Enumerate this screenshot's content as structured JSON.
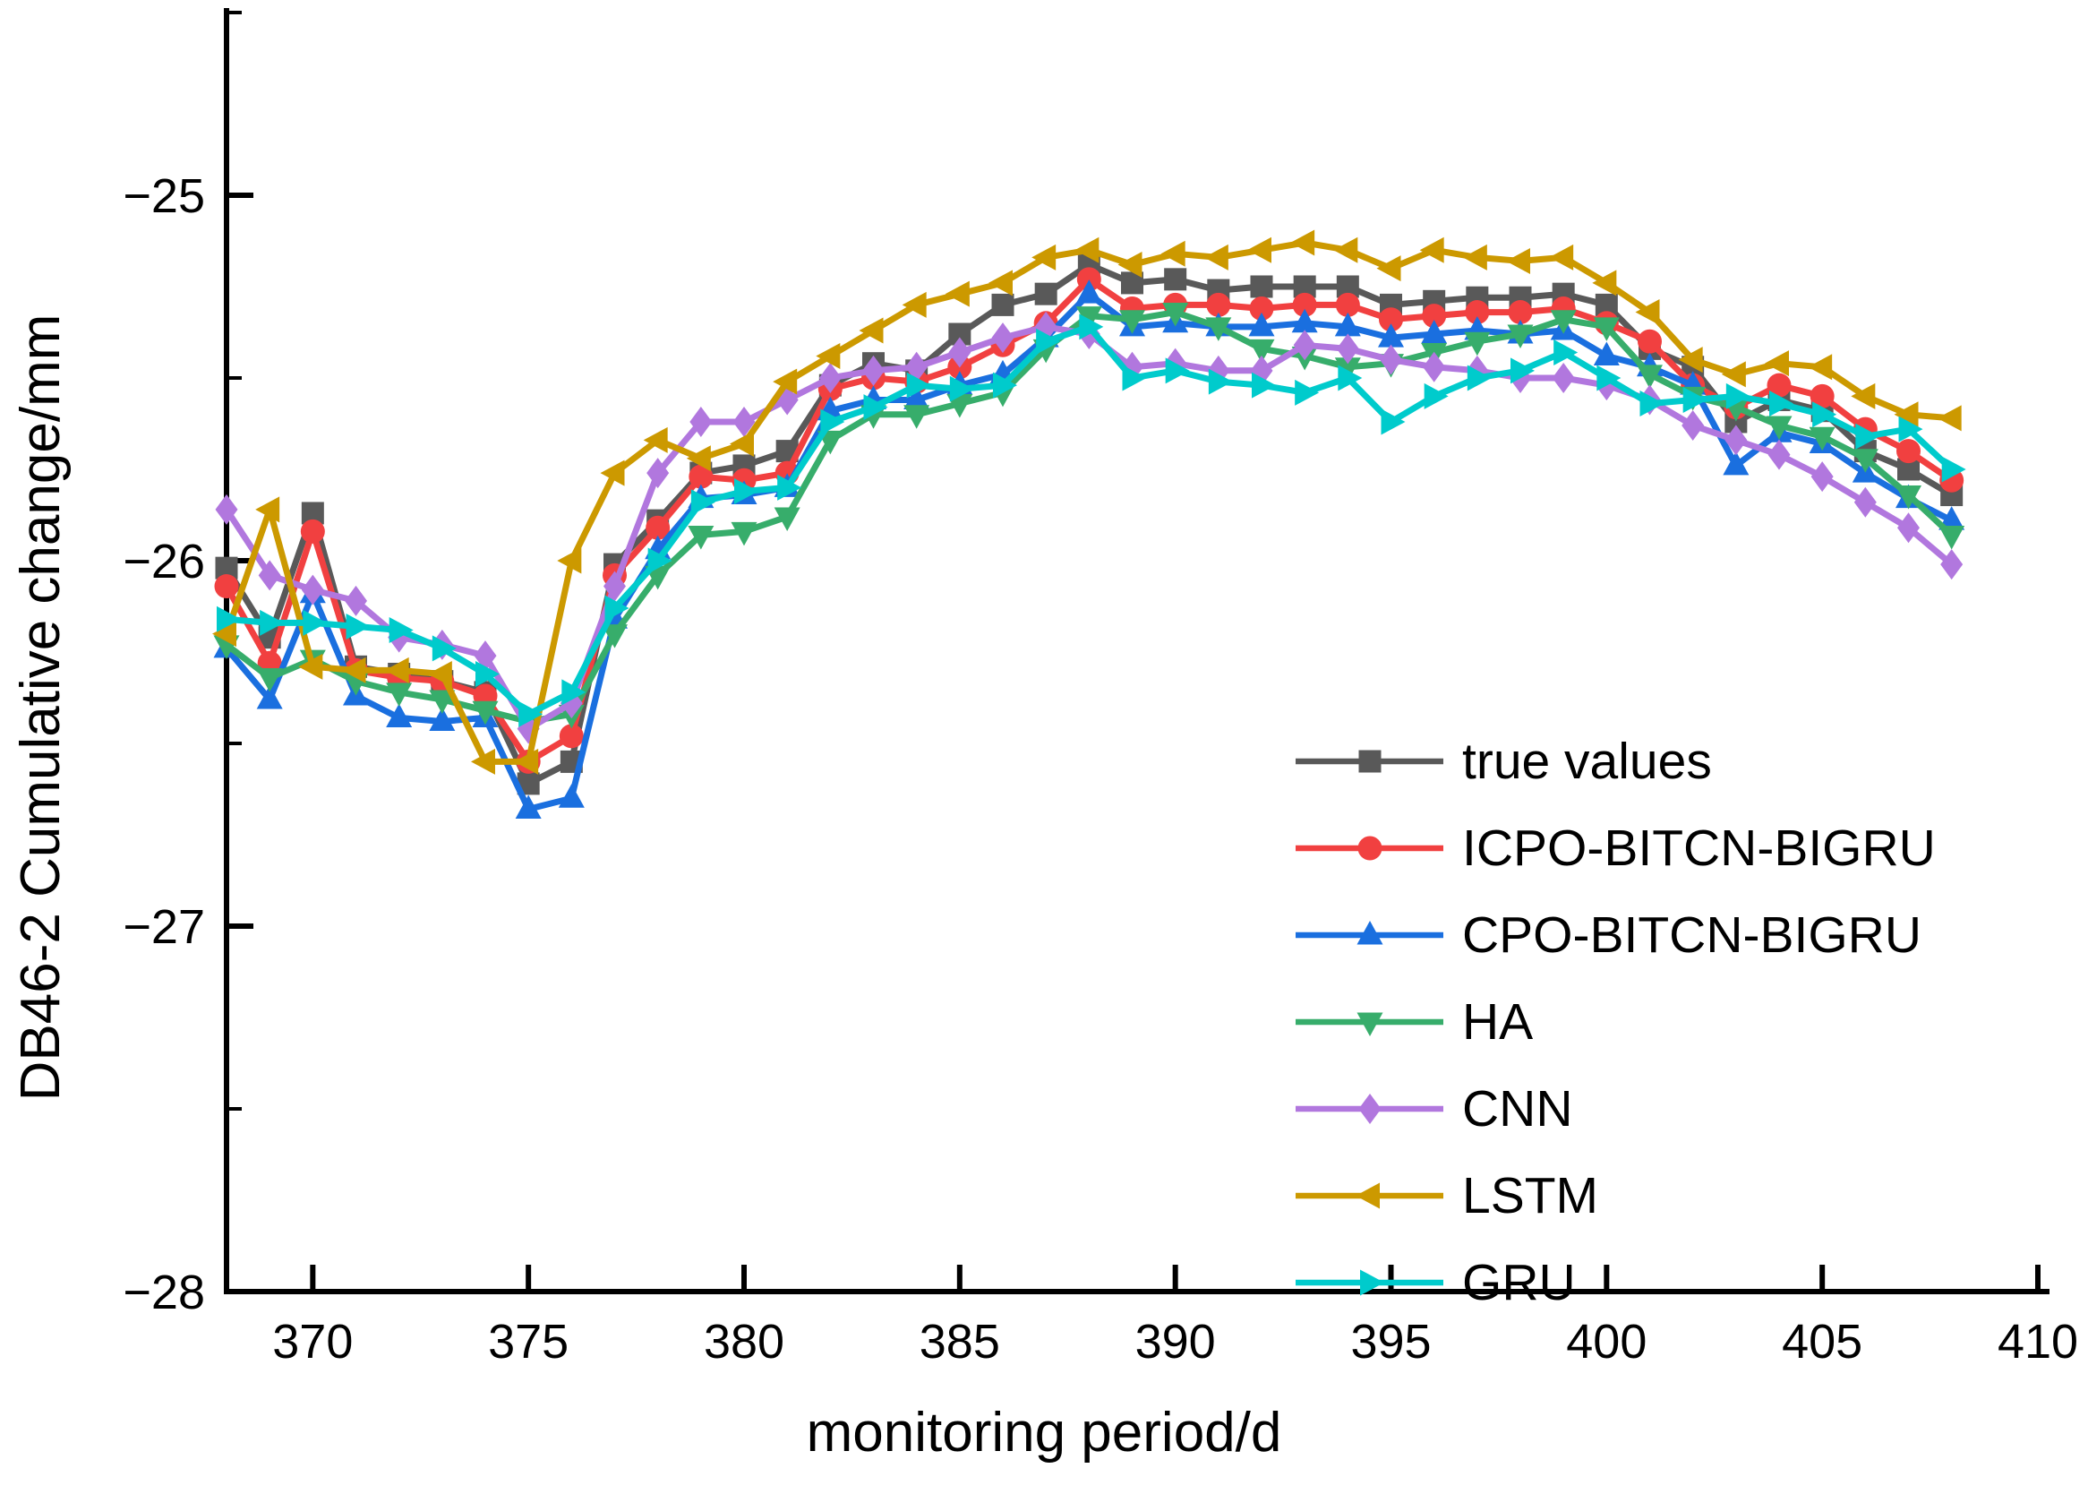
{
  "page": {
    "background": "#ffffff"
  },
  "chart_data": {
    "type": "line",
    "title": "",
    "xlabel": "monitoring period/d",
    "ylabel": "DB46-2 Cumulative change/mm",
    "xlim": [
      368,
      410
    ],
    "ylim": [
      -28,
      -24.5
    ],
    "grid": false,
    "legend_position": "inside-right",
    "xticks": [
      370,
      375,
      380,
      385,
      390,
      395,
      400,
      405,
      410
    ],
    "xtick_labels": [
      "370",
      "375",
      "380",
      "385",
      "390",
      "395",
      "400",
      "405",
      "410"
    ],
    "yticks_major": [
      -25,
      -26,
      -27,
      -28
    ],
    "ytick_labels": [
      "−25",
      "−26",
      "−27",
      "−28"
    ],
    "yticks_minor": [
      -24.5,
      -25.5,
      -26.5,
      -27.5
    ],
    "x": [
      368,
      369,
      370,
      371,
      372,
      373,
      374,
      375,
      376,
      377,
      378,
      379,
      380,
      381,
      382,
      383,
      384,
      385,
      386,
      387,
      388,
      389,
      390,
      391,
      392,
      393,
      394,
      395,
      396,
      397,
      398,
      399,
      400,
      401,
      402,
      403,
      404,
      405,
      406,
      407,
      408
    ],
    "series": [
      {
        "name": "true values",
        "color": "#595959",
        "marker": "square",
        "values": [
          -26.02,
          -26.21,
          -25.87,
          -26.29,
          -26.31,
          -26.33,
          -26.36,
          -26.61,
          -26.55,
          -26.01,
          -25.89,
          -25.76,
          -25.74,
          -25.7,
          -25.52,
          -25.46,
          -25.48,
          -25.38,
          -25.3,
          -25.27,
          -25.19,
          -25.24,
          -25.23,
          -25.26,
          -25.25,
          -25.25,
          -25.25,
          -25.3,
          -25.29,
          -25.28,
          -25.28,
          -25.27,
          -25.3,
          -25.42,
          -25.47,
          -25.62,
          -25.56,
          -25.59,
          -25.7,
          -25.75,
          -25.82
        ]
      },
      {
        "name": "ICPO-BITCN-BIGRU",
        "color": "#F14040",
        "marker": "circle",
        "values": [
          -26.07,
          -26.28,
          -25.92,
          -26.3,
          -26.32,
          -26.33,
          -26.37,
          -26.55,
          -26.48,
          -26.04,
          -25.91,
          -25.77,
          -25.78,
          -25.76,
          -25.53,
          -25.5,
          -25.51,
          -25.47,
          -25.41,
          -25.35,
          -25.23,
          -25.31,
          -25.3,
          -25.3,
          -25.31,
          -25.3,
          -25.3,
          -25.34,
          -25.33,
          -25.32,
          -25.32,
          -25.31,
          -25.35,
          -25.4,
          -25.52,
          -25.58,
          -25.52,
          -25.55,
          -25.64,
          -25.7,
          -25.78
        ]
      },
      {
        "name": "CPO-BITCN-BIGRU",
        "color": "#1A6FDF",
        "marker": "triangle-up",
        "values": [
          -26.24,
          -26.38,
          -26.09,
          -26.37,
          -26.43,
          -26.44,
          -26.43,
          -26.68,
          -26.65,
          -26.16,
          -25.97,
          -25.83,
          -25.82,
          -25.8,
          -25.59,
          -25.56,
          -25.56,
          -25.52,
          -25.49,
          -25.39,
          -25.27,
          -25.36,
          -25.35,
          -25.36,
          -25.36,
          -25.35,
          -25.36,
          -25.39,
          -25.38,
          -25.37,
          -25.38,
          -25.37,
          -25.44,
          -25.47,
          -25.52,
          -25.74,
          -25.65,
          -25.68,
          -25.76,
          -25.83,
          -25.89
        ]
      },
      {
        "name": "HA",
        "color": "#37AD6B",
        "marker": "triangle-down",
        "values": [
          -26.23,
          -26.32,
          -26.27,
          -26.33,
          -26.36,
          -26.38,
          -26.41,
          -26.44,
          -26.42,
          -26.2,
          -26.04,
          -25.93,
          -25.92,
          -25.88,
          -25.67,
          -25.6,
          -25.6,
          -25.57,
          -25.54,
          -25.42,
          -25.33,
          -25.34,
          -25.32,
          -25.36,
          -25.42,
          -25.44,
          -25.47,
          -25.46,
          -25.43,
          -25.4,
          -25.38,
          -25.34,
          -25.36,
          -25.49,
          -25.55,
          -25.58,
          -25.63,
          -25.66,
          -25.72,
          -25.82,
          -25.93
        ]
      },
      {
        "name": "CNN",
        "color": "#B177DE",
        "marker": "diamond",
        "values": [
          -25.86,
          -26.04,
          -26.08,
          -26.11,
          -26.21,
          -26.23,
          -26.26,
          -26.46,
          -26.39,
          -26.07,
          -25.76,
          -25.62,
          -25.62,
          -25.56,
          -25.5,
          -25.48,
          -25.47,
          -25.43,
          -25.39,
          -25.36,
          -25.38,
          -25.47,
          -25.46,
          -25.48,
          -25.48,
          -25.41,
          -25.42,
          -25.45,
          -25.47,
          -25.48,
          -25.5,
          -25.5,
          -25.52,
          -25.56,
          -25.63,
          -25.67,
          -25.71,
          -25.77,
          -25.84,
          -25.91,
          -26.01
        ]
      },
      {
        "name": "LSTM",
        "color": "#CC9900",
        "marker": "triangle-left",
        "values": [
          -26.2,
          -25.86,
          -26.29,
          -26.3,
          -26.3,
          -26.31,
          -26.55,
          -26.55,
          -26.0,
          -25.76,
          -25.67,
          -25.72,
          -25.68,
          -25.51,
          -25.44,
          -25.37,
          -25.3,
          -25.27,
          -25.24,
          -25.17,
          -25.15,
          -25.19,
          -25.16,
          -25.17,
          -25.15,
          -25.13,
          -25.15,
          -25.2,
          -25.15,
          -25.17,
          -25.18,
          -25.17,
          -25.24,
          -25.32,
          -25.45,
          -25.49,
          -25.46,
          -25.47,
          -25.55,
          -25.6,
          -25.61
        ]
      },
      {
        "name": "GRU",
        "color": "#00CBCC",
        "marker": "triangle-right",
        "values": [
          -26.16,
          -26.17,
          -26.17,
          -26.18,
          -26.19,
          -26.24,
          -26.31,
          -26.42,
          -26.36,
          -26.13,
          -26.0,
          -25.84,
          -25.81,
          -25.8,
          -25.62,
          -25.58,
          -25.52,
          -25.53,
          -25.52,
          -25.4,
          -25.36,
          -25.5,
          -25.48,
          -25.51,
          -25.52,
          -25.54,
          -25.5,
          -25.62,
          -25.55,
          -25.5,
          -25.48,
          -25.43,
          -25.5,
          -25.57,
          -25.56,
          -25.55,
          -25.57,
          -25.6,
          -25.66,
          -25.64,
          -25.75
        ]
      }
    ]
  }
}
